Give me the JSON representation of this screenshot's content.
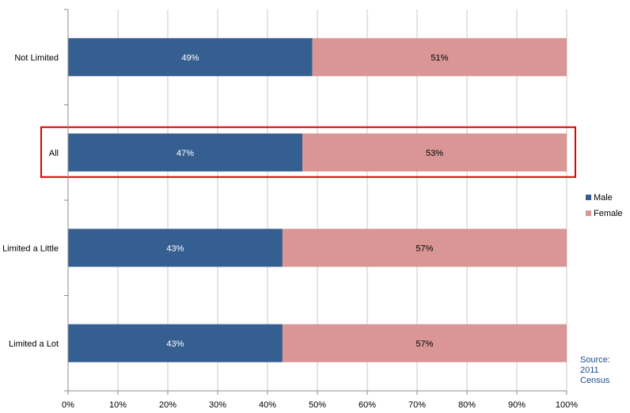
{
  "chart_data": {
    "type": "bar",
    "orientation": "horizontal",
    "stacked": "percent",
    "categories": [
      "Not Limited",
      "All",
      "Limited a Little",
      "Limited a Lot"
    ],
    "series": [
      {
        "name": "Male",
        "values": [
          49,
          47,
          43,
          43
        ],
        "labels": [
          "49%",
          "47%",
          "43%",
          "43%"
        ],
        "color": "#365f91"
      },
      {
        "name": "Female",
        "values": [
          51,
          53,
          57,
          57
        ],
        "labels": [
          "51%",
          "53%",
          "57%",
          "57%"
        ],
        "color": "#d99694"
      }
    ],
    "x_ticks": [
      "0%",
      "10%",
      "20%",
      "30%",
      "40%",
      "50%",
      "60%",
      "70%",
      "80%",
      "90%",
      "100%"
    ],
    "xlim": [
      0,
      100
    ],
    "grid": true,
    "legend_position": "right",
    "highlight": {
      "category": "All",
      "color": "#e00000"
    }
  },
  "source": {
    "lines": [
      "Source:",
      "2011",
      "Census"
    ],
    "color": "#1f4e8c"
  },
  "colors": {
    "grid": "#c8c8c8",
    "axis": "#8c8c8c",
    "label": "#000000"
  }
}
